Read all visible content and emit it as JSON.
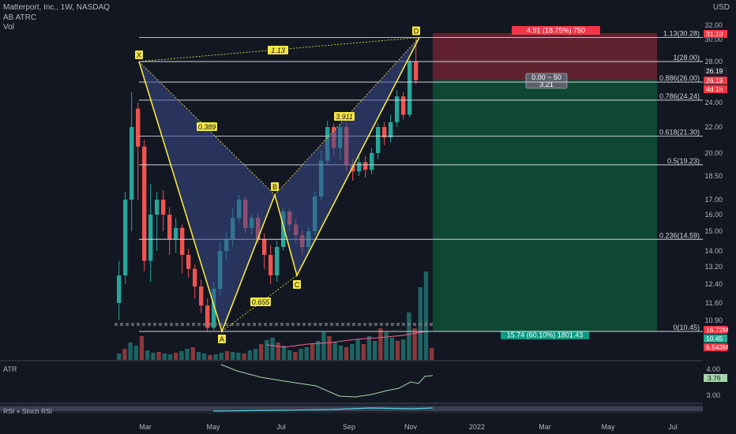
{
  "header": {
    "symbol": "Matterport, Inc., 1W, NASDAQ",
    "indicator1": "AB ATRC",
    "indicator2": "Vol",
    "currency": "USD"
  },
  "price_axis": [
    "32.00",
    "30.00",
    "28.00",
    "26.00",
    "24.00",
    "22.00",
    "20.00",
    "18.50",
    "17.00",
    "16.00",
    "15.00",
    "14.00",
    "13.20",
    "12.40",
    "11.60",
    "10.90"
  ],
  "time_axis": [
    "Mar",
    "May",
    "Jul",
    "Sep",
    "Nov",
    "2022",
    "Mar",
    "May",
    "Jul"
  ],
  "fib_levels": [
    {
      "label": "1.13(30.28)",
      "price": 30.28
    },
    {
      "label": "1(28.00)",
      "price": 28.0
    },
    {
      "label": "0.886(26.00)",
      "price": 26.0
    },
    {
      "label": "0.786(24.24)",
      "price": 24.24
    },
    {
      "label": "0.618(21.30)",
      "price": 21.3
    },
    {
      "label": "0.5(19.23)",
      "price": 19.23
    },
    {
      "label": "0.236(14.59)",
      "price": 14.59
    },
    {
      "label": "0(10.45)",
      "price": 10.45
    }
  ],
  "pattern": {
    "points": [
      {
        "label": "X",
        "price": 28.0
      },
      {
        "label": "A",
        "price": 10.45
      },
      {
        "label": "B",
        "price": 17.3
      },
      {
        "label": "C",
        "price": 12.8
      },
      {
        "label": "D",
        "price": 30.28
      }
    ],
    "ratios": [
      "1.13",
      "0.389",
      "0.655",
      "3.911"
    ]
  },
  "position": {
    "stop_label": "4.91 (18.75%) 750",
    "target_label": "15.74 (60.10%) 1801.43",
    "center_line1": "0.00 ~ 50",
    "center_line2": "3.21"
  },
  "price_tags": [
    {
      "text": "31.10",
      "color": "#f23645"
    },
    {
      "text": "26.19",
      "color": "#1e222d"
    },
    {
      "text": "26.19",
      "color": "#f23645"
    },
    {
      "text": "4d 1h",
      "color": "#f23645"
    },
    {
      "text": "16.72M",
      "color": "#f23645"
    },
    {
      "text": "10.45",
      "color": "#22ab94"
    },
    {
      "text": "6.543M",
      "color": "#f23645"
    }
  ],
  "atr": {
    "label": "ATR",
    "axis_top": "4.00",
    "value": "3.76",
    "axis_bottom": "3.00"
  },
  "rsi": {
    "label": "RSI + Stoch RSI"
  },
  "colors": {
    "up": "#26a69a",
    "down": "#ef5350",
    "pattern": "#f5e642",
    "fill": "#3a4d8c"
  }
}
